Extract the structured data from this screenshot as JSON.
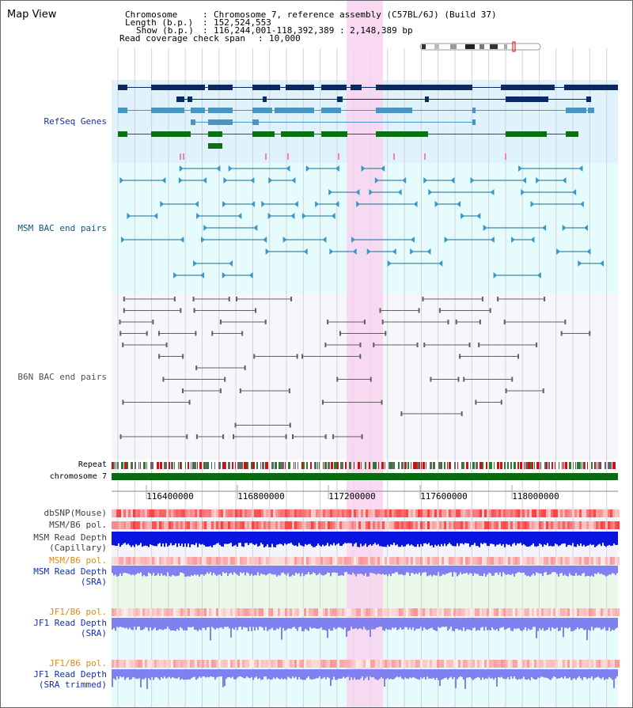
{
  "view": {
    "title": "Map View",
    "chromosome_label": "Chromosome",
    "chromosome_value": "Chromosome 7, reference assembly (C57BL/6J) (Build 37)",
    "length_label": "Length (b.p.)",
    "length_value": "152,524,553",
    "show_label": "Show (b.p.)",
    "show_value": "116,244,001-118,392,389 : 2,148,389 bp",
    "coverage_label": "Read coverage check span",
    "coverage_value": "10,000",
    "sep": ":"
  },
  "tracks": {
    "refseq": "RefSeq Genes",
    "msm_bac": "MSM BAC end pairs",
    "b6n_bac": "B6N BAC end pairs",
    "repeat": "Repeat",
    "chromosome": "chromosome 7",
    "dbsnp": "dbSNP(Mouse)",
    "msm_b6_pol": "MSM/B6 pol.",
    "msm_depth_cap_1": "MSM Read Depth",
    "msm_depth_cap_2": "(Capillary)",
    "msm_b6_pol_sra": "MSM/B6 pol.",
    "msm_depth_sra_1": "MSM Read Depth",
    "msm_depth_sra_2": "(SRA)",
    "jf1_pol_1": "JF1/B6 pol.",
    "jf1_depth_1": "JF1 Read Depth",
    "jf1_depth_1b": "(SRA)",
    "jf1_pol_2": "JF1/B6 pol.",
    "jf1_depth_2": "JF1 Read Depth",
    "jf1_depth_2b": "(SRA trimmed)"
  },
  "axis": {
    "ticks": [
      "116400000",
      "116800000",
      "117200000",
      "117600000",
      "118000000"
    ]
  },
  "colors": {
    "refseq_bg": "#e0f2fb",
    "bac_bg": "#e6fbfb",
    "highlight": "#f8d4f0",
    "dark_navy": "#0a2a66",
    "gene_blue": "#4a94c0",
    "gene_green": "#0a7010",
    "msm_line": "#1a6a90",
    "b6n_line": "#606060",
    "depth_blue": "#0a14e0",
    "depth_light": "#8080f0",
    "label_blue": "#1030b0",
    "label_orange": "#e08a10",
    "label_teal": "#105a78"
  }
}
